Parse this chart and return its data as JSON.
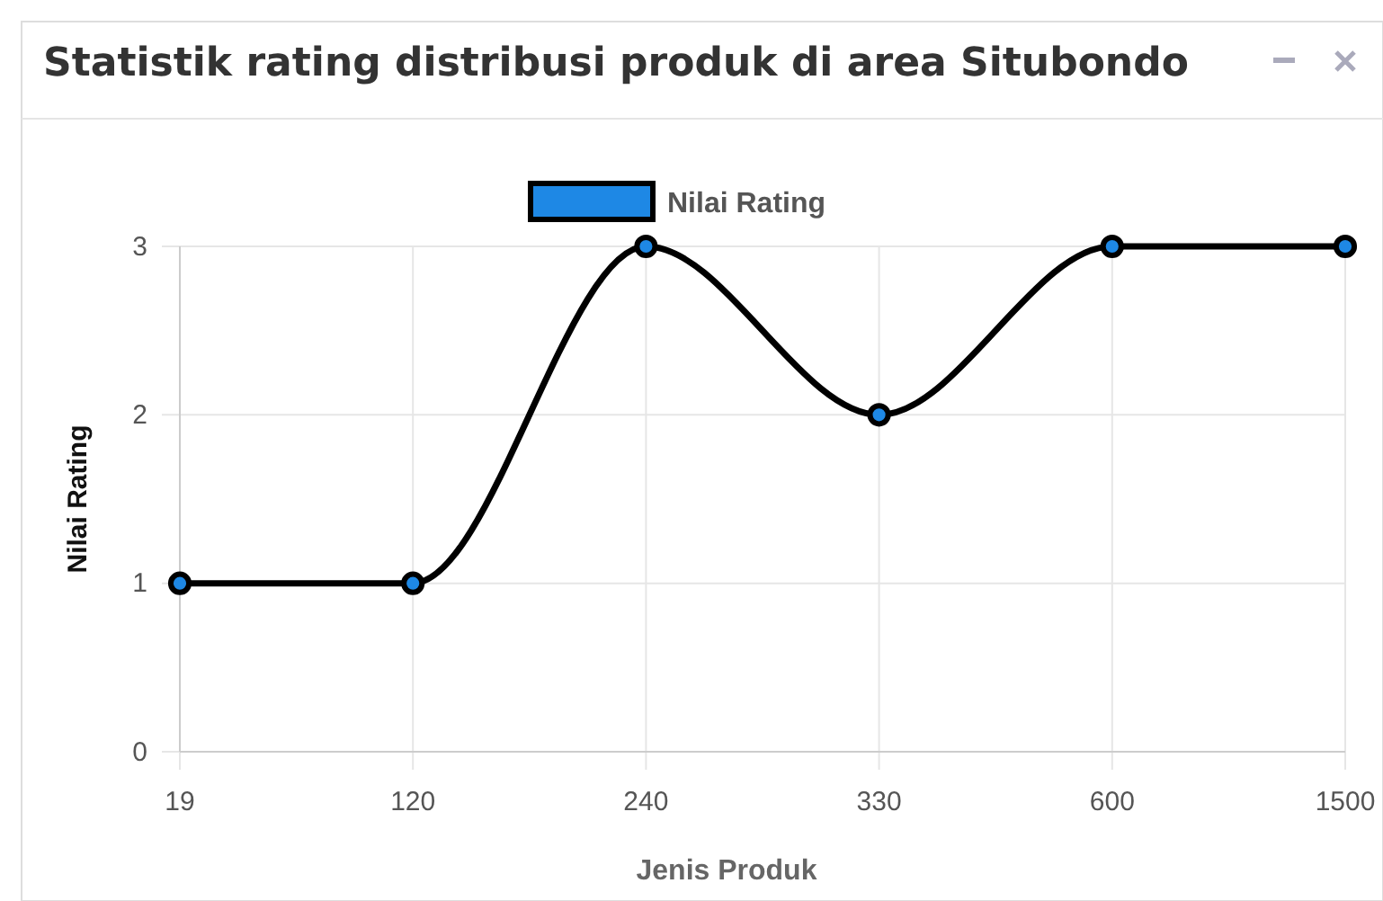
{
  "chart_data": {
    "type": "line",
    "title": "Statistik rating distribusi produk di area Situbondo",
    "xlabel": "Jenis Produk",
    "ylabel": "Nilai Rating",
    "categories": [
      "19",
      "120",
      "240",
      "330",
      "600",
      "1500"
    ],
    "series": [
      {
        "name": "Nilai Rating",
        "color": "#1e88e5",
        "values": [
          1,
          1,
          3,
          2,
          3,
          3
        ]
      }
    ],
    "ylim": [
      0,
      3
    ],
    "yticks": [
      0,
      1,
      2,
      3
    ],
    "grid": true,
    "legend": "top",
    "marker": "circle",
    "line_style": "solid"
  }
}
